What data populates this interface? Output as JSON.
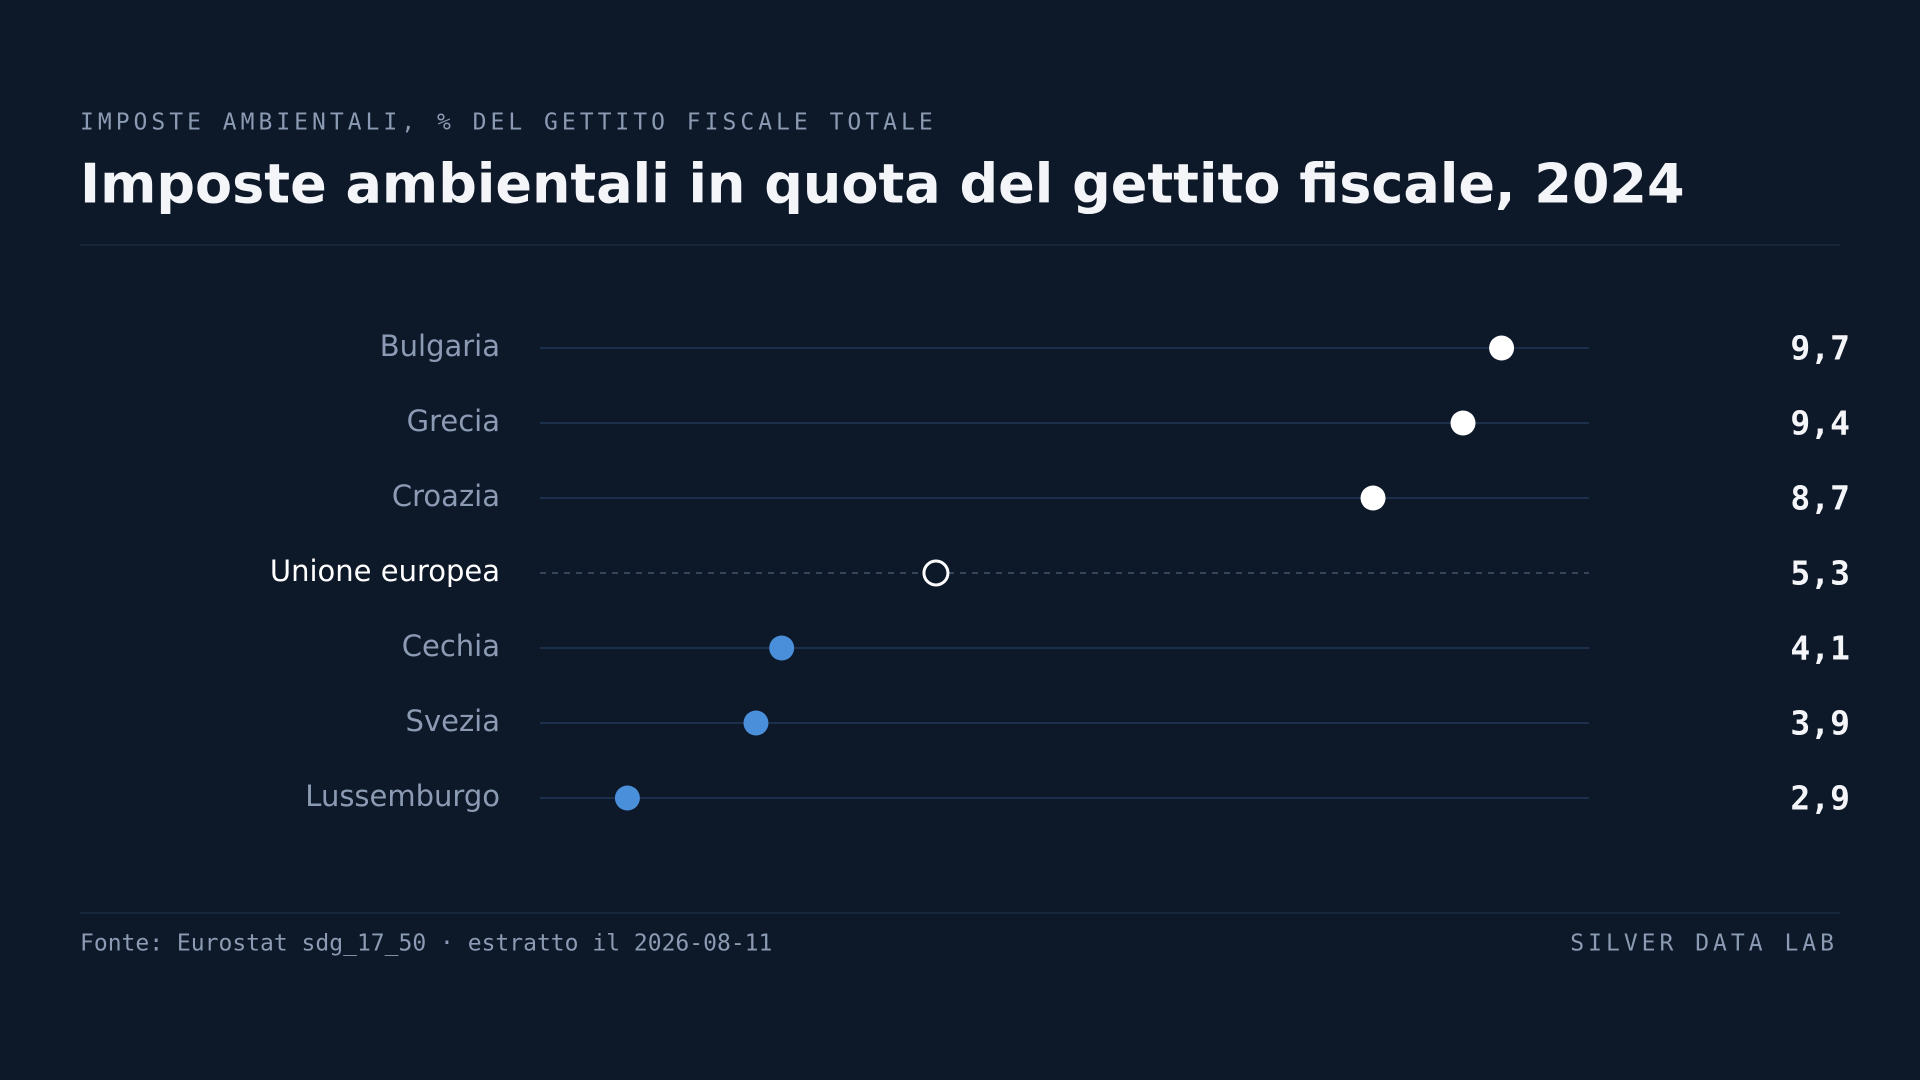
{
  "chart_data": {
    "type": "dot",
    "subtitle": "IMPOSTE AMBIENTALI, % DEL GETTITO FISCALE TOTALE",
    "title": "Imposte ambientali in quota del gettito fiscale, 2024",
    "categories": [
      "Bulgaria",
      "Grecia",
      "Croazia",
      "Unione europea",
      "Cechia",
      "Svezia",
      "Lussemburgo"
    ],
    "values": [
      9.7,
      9.4,
      8.7,
      5.3,
      4.1,
      3.9,
      2.9
    ],
    "value_labels": [
      "9,7",
      "9,4",
      "8,7",
      "5,3",
      "4,1",
      "3,9",
      "2,9"
    ],
    "colors": [
      "#ffffff",
      "#ffffff",
      "#ffffff",
      "#ffffff",
      "#4a8fd9",
      "#4a8fd9",
      "#4a8fd9"
    ],
    "marker_styles": [
      "filled",
      "filled",
      "filled",
      "hollow",
      "filled",
      "filled",
      "filled"
    ],
    "xlim": [
      2.22,
      10.38
    ],
    "source": "Fonte: Eurostat sdg_17_50 · estratto il 2026-08-11",
    "credit": "SILVER DATA LAB"
  }
}
